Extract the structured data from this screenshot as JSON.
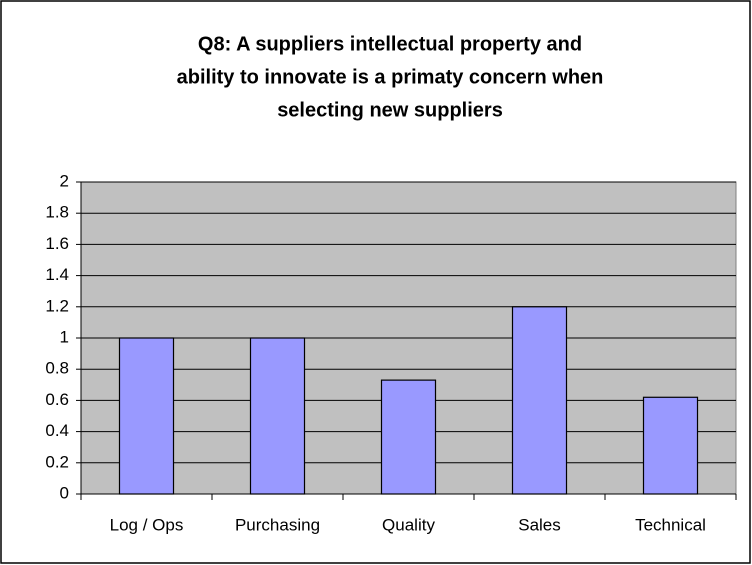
{
  "chart_data": {
    "type": "bar",
    "title": [
      "Q8: A suppliers intellectual property and",
      "ability to innovate is a primaty concern when",
      "selecting new suppliers"
    ],
    "categories": [
      "Log / Ops",
      "Purchasing",
      "Quality",
      "Sales",
      "Technical"
    ],
    "values": [
      1,
      1,
      0.73,
      1.2,
      0.62
    ],
    "color": "#9999ff",
    "ylim": [
      0,
      2
    ],
    "yticks": [
      0,
      0.2,
      0.4,
      0.6,
      0.8,
      1,
      1.2,
      1.4,
      1.6,
      1.8,
      2
    ],
    "grid": true
  }
}
